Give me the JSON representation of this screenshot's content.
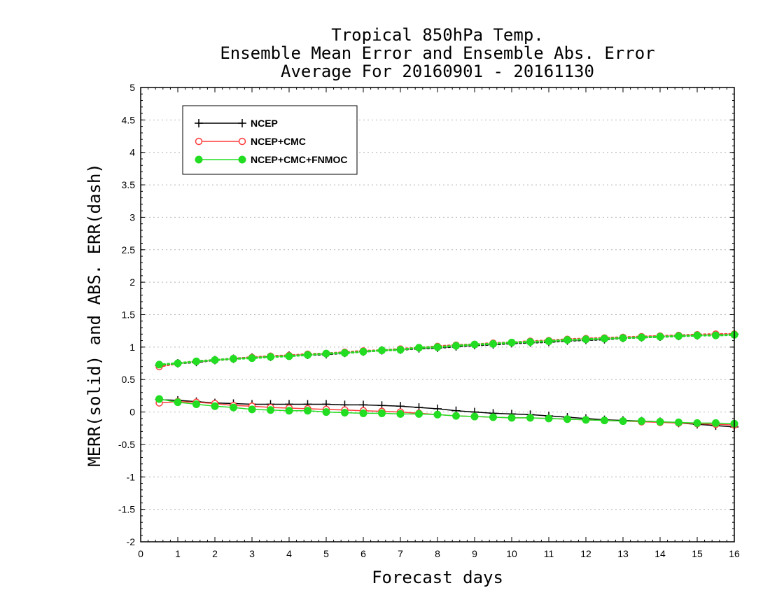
{
  "chart_data": {
    "type": "line",
    "title_lines": [
      "Tropical 850hPa Temp.",
      "Ensemble Mean Error and Ensemble Abs. Error",
      "Average For 20160901 - 20161130"
    ],
    "xlabel": "Forecast days",
    "ylabel": "MERR(solid) and ABS. ERR(dash)",
    "xlim": [
      0,
      16
    ],
    "ylim": [
      -2,
      5
    ],
    "x_ticks": [
      "0",
      "1",
      "2",
      "3",
      "4",
      "5",
      "6",
      "7",
      "8",
      "9",
      "10",
      "11",
      "12",
      "13",
      "14",
      "15",
      "16"
    ],
    "y_ticks": [
      "5",
      "4.5",
      "4",
      "3.5",
      "3",
      "2.5",
      "2",
      "1.5",
      "1",
      "0.5",
      "0",
      "-0.5",
      "-1",
      "-1.5",
      "-2"
    ],
    "grid": "horizontal dotted",
    "legend_placement": "top-left",
    "x": [
      0.5,
      1,
      1.5,
      2,
      2.5,
      3,
      3.5,
      4,
      4.5,
      5,
      5.5,
      6,
      6.5,
      7,
      7.5,
      8,
      8.5,
      9,
      9.5,
      10,
      10.5,
      11,
      11.5,
      12,
      12.5,
      13,
      13.5,
      14,
      14.5,
      15,
      15.5,
      16
    ],
    "series": [
      {
        "name": "NCEP",
        "color": "#000000",
        "marker": "plus",
        "merr": [
          0.19,
          0.18,
          0.16,
          0.14,
          0.13,
          0.12,
          0.12,
          0.12,
          0.12,
          0.12,
          0.11,
          0.11,
          0.1,
          0.09,
          0.07,
          0.05,
          0.02,
          0.0,
          -0.02,
          -0.03,
          -0.04,
          -0.06,
          -0.08,
          -0.1,
          -0.12,
          -0.13,
          -0.14,
          -0.15,
          -0.17,
          -0.19,
          -0.21,
          -0.23
        ],
        "abserr": [
          0.72,
          0.75,
          0.77,
          0.8,
          0.82,
          0.84,
          0.85,
          0.87,
          0.88,
          0.89,
          0.91,
          0.93,
          0.95,
          0.96,
          0.98,
          0.99,
          1.01,
          1.03,
          1.04,
          1.06,
          1.07,
          1.08,
          1.1,
          1.11,
          1.12,
          1.14,
          1.15,
          1.16,
          1.17,
          1.18,
          1.19,
          1.2
        ]
      },
      {
        "name": "NCEP+CMC",
        "color": "#ff3c3c",
        "marker": "open-circle",
        "merr": [
          0.14,
          0.16,
          0.15,
          0.13,
          0.1,
          0.09,
          0.07,
          0.06,
          0.05,
          0.04,
          0.03,
          0.02,
          0.01,
          0.0,
          -0.02,
          -0.04,
          -0.06,
          -0.07,
          -0.08,
          -0.09,
          -0.09,
          -0.1,
          -0.11,
          -0.12,
          -0.13,
          -0.14,
          -0.15,
          -0.16,
          -0.17,
          -0.18,
          -0.19,
          -0.2
        ],
        "abserr": [
          0.7,
          0.75,
          0.78,
          0.8,
          0.82,
          0.84,
          0.86,
          0.87,
          0.89,
          0.9,
          0.92,
          0.94,
          0.95,
          0.97,
          0.99,
          1.01,
          1.03,
          1.04,
          1.06,
          1.07,
          1.09,
          1.1,
          1.12,
          1.13,
          1.14,
          1.15,
          1.16,
          1.17,
          1.18,
          1.19,
          1.2,
          1.2
        ]
      },
      {
        "name": "NCEP+CMC+FNMOC",
        "color": "#22dd22",
        "marker": "filled-circle",
        "merr": [
          0.2,
          0.15,
          0.12,
          0.09,
          0.07,
          0.04,
          0.03,
          0.02,
          0.02,
          0.0,
          -0.01,
          -0.02,
          -0.02,
          -0.03,
          -0.03,
          -0.04,
          -0.06,
          -0.07,
          -0.08,
          -0.09,
          -0.09,
          -0.1,
          -0.11,
          -0.12,
          -0.13,
          -0.14,
          -0.14,
          -0.15,
          -0.16,
          -0.17,
          -0.17,
          -0.18
        ],
        "abserr": [
          0.73,
          0.75,
          0.78,
          0.8,
          0.82,
          0.83,
          0.85,
          0.86,
          0.88,
          0.9,
          0.91,
          0.93,
          0.95,
          0.96,
          0.99,
          1.0,
          1.02,
          1.04,
          1.05,
          1.07,
          1.08,
          1.09,
          1.11,
          1.12,
          1.13,
          1.14,
          1.15,
          1.16,
          1.17,
          1.18,
          1.18,
          1.19
        ]
      }
    ]
  }
}
